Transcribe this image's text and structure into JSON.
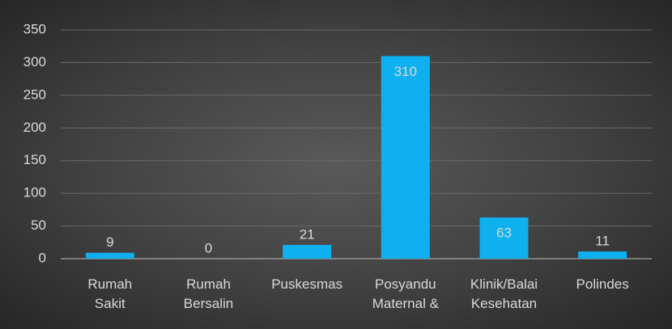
{
  "chart_data": {
    "type": "bar",
    "categories": [
      "Rumah\nSakit",
      "Rumah\nBersalin",
      "Puskesmas",
      "Posyandu\nMaternal &",
      "Klinik/Balai\nKesehatan",
      "Polindes"
    ],
    "values": [
      9,
      0,
      21,
      310,
      63,
      11
    ],
    "color": "#0fb0ef",
    "ylim": [
      0,
      350
    ],
    "yticks": [
      0,
      50,
      100,
      150,
      200,
      250,
      300,
      350
    ],
    "grid": true
  }
}
